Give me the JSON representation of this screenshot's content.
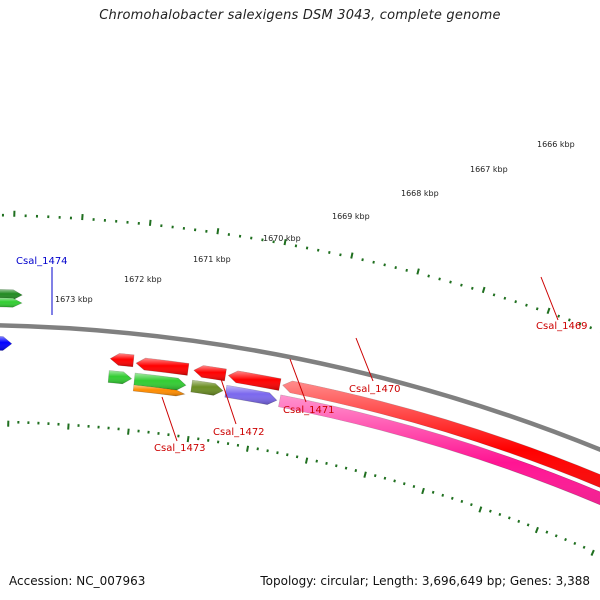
{
  "title": "Chromohalobacter salexigens DSM 3043, complete genome",
  "footer": {
    "accession": "Accession: NC_007963",
    "stats": "Topology: circular; Length: 3,696,649 bp; Genes: 3,388"
  },
  "scale_labels": [
    "1666 kbp",
    "1667 kbp",
    "1668 kbp",
    "1669 kbp",
    "1670 kbp",
    "1671 kbp",
    "1672 kbp",
    "1673 kbp"
  ],
  "gene_labels": [
    "Csal_1474",
    "Csal_1469",
    "Csal_1470",
    "Csal_1471",
    "Csal_1472",
    "Csal_1473"
  ],
  "colors": {
    "backbone": "#808080",
    "ticks": "#1f6f1f",
    "label_blue": "#0000cc",
    "label_red": "#cc0000",
    "red": "#ff0000",
    "pink": "#ff1493",
    "purple": "#7b68ee",
    "olive": "#6b8e23",
    "green": "#32cd32",
    "dark_green": "#228b22",
    "blue": "#0000ff",
    "orange": "#ff8c00"
  }
}
